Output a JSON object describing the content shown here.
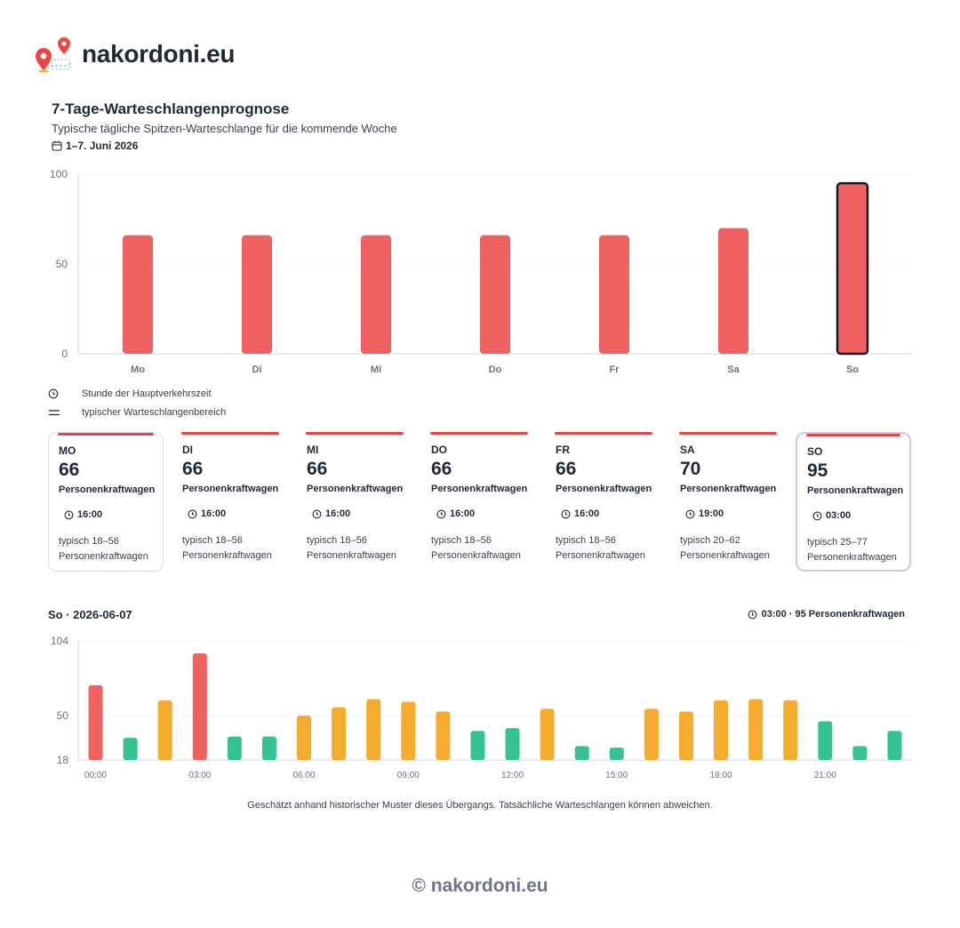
{
  "brand": {
    "name": "nakordoni.eu"
  },
  "header": {
    "title": "7-Tage-Warteschlangenprognose",
    "subtitle": "Typische tägliche Spitzen-Warteschlange für die kommende Woche",
    "date_range": "1–7. Juni 2026"
  },
  "legend": {
    "peak_hour": "Stunde der Hauptverkehrszeit",
    "typical_range": "typischer Warteschlangenbereich"
  },
  "cards": [
    {
      "day": "MO",
      "value": "66",
      "unit": "Personenkraftwagen",
      "peak": "16:00",
      "typical": "typisch 18–56",
      "typical_unit": "Personenkraftwagen"
    },
    {
      "day": "DI",
      "value": "66",
      "unit": "Personenkraftwagen",
      "peak": "16:00",
      "typical": "typisch 18–56",
      "typical_unit": "Personenkraftwagen"
    },
    {
      "day": "MI",
      "value": "66",
      "unit": "Personenkraftwagen",
      "peak": "16:00",
      "typical": "typisch 18–56",
      "typical_unit": "Personenkraftwagen"
    },
    {
      "day": "DO",
      "value": "66",
      "unit": "Personenkraftwagen",
      "peak": "16:00",
      "typical": "typisch 18–56",
      "typical_unit": "Personenkraftwagen"
    },
    {
      "day": "FR",
      "value": "66",
      "unit": "Personenkraftwagen",
      "peak": "16:00",
      "typical": "typisch 18–56",
      "typical_unit": "Personenkraftwagen"
    },
    {
      "day": "SA",
      "value": "70",
      "unit": "Personenkraftwagen",
      "peak": "19:00",
      "typical": "typisch 20–62",
      "typical_unit": "Personenkraftwagen"
    },
    {
      "day": "SO",
      "value": "95",
      "unit": "Personenkraftwagen",
      "peak": "03:00",
      "typical": "typisch 25–77",
      "typical_unit": "Personenkraftwagen"
    }
  ],
  "day_detail": {
    "title": "So · 2026-06-07",
    "peak_info": "03:00 · 95 Personenkraftwagen"
  },
  "note": "Geschätzt anhand historischer Muster dieses Übergangs. Tatsächliche Warteschlangen können abweichen.",
  "footer": "© nakordoni.eu",
  "colors": {
    "red": "#f06161",
    "orange": "#f5ab2e",
    "green": "#35c48f",
    "selected_outline": "#141828"
  },
  "chart_data": [
    {
      "type": "bar",
      "categories": [
        "Mo",
        "Di",
        "Mi",
        "Do",
        "Fr",
        "Sa",
        "So"
      ],
      "values": [
        66,
        66,
        66,
        66,
        66,
        70,
        95
      ],
      "ylim": [
        0,
        100
      ],
      "yticks": [
        0,
        50,
        100
      ],
      "highlight": "So",
      "grid": true
    },
    {
      "type": "bar",
      "x": [
        "00:00",
        "01:00",
        "02:00",
        "03:00",
        "04:00",
        "05:00",
        "06:00",
        "07:00",
        "08:00",
        "09:00",
        "10:00",
        "11:00",
        "12:00",
        "13:00",
        "14:00",
        "15:00",
        "16:00",
        "17:00",
        "18:00",
        "19:00",
        "20:00",
        "21:00",
        "22:00",
        "23:00"
      ],
      "xticks": [
        "00:00",
        "03:00",
        "06:00",
        "09:00",
        "12:00",
        "15:00",
        "18:00",
        "21:00"
      ],
      "values": [
        72,
        34,
        61,
        95,
        35,
        35,
        50,
        56,
        62,
        60,
        53,
        39,
        41,
        55,
        28,
        27,
        55,
        53,
        61,
        62,
        61,
        46,
        28,
        39
      ],
      "levels": [
        "red",
        "green",
        "orange",
        "red",
        "green",
        "green",
        "orange",
        "orange",
        "orange",
        "orange",
        "orange",
        "green",
        "green",
        "orange",
        "green",
        "green",
        "orange",
        "orange",
        "orange",
        "orange",
        "orange",
        "green",
        "green",
        "green"
      ],
      "ylim": [
        18,
        104
      ],
      "yticks": [
        18,
        50,
        104
      ],
      "grid": true
    }
  ]
}
